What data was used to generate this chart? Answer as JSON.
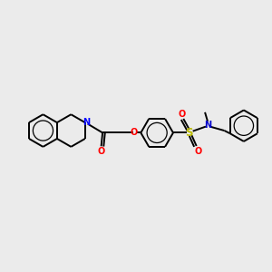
{
  "background_color": "#ebebeb",
  "bond_color": "#000000",
  "bond_width": 1.4,
  "atom_colors": {
    "N_iso": "#0000ff",
    "N_sul": "#0000cc",
    "O": "#ff0000",
    "S": "#bbbb00",
    "C": "#000000"
  },
  "font_size_atom": 7.0,
  "fig_width": 3.0,
  "fig_height": 3.0,
  "dpi": 100,
  "xlim": [
    0,
    10
  ],
  "ylim": [
    0,
    10
  ]
}
